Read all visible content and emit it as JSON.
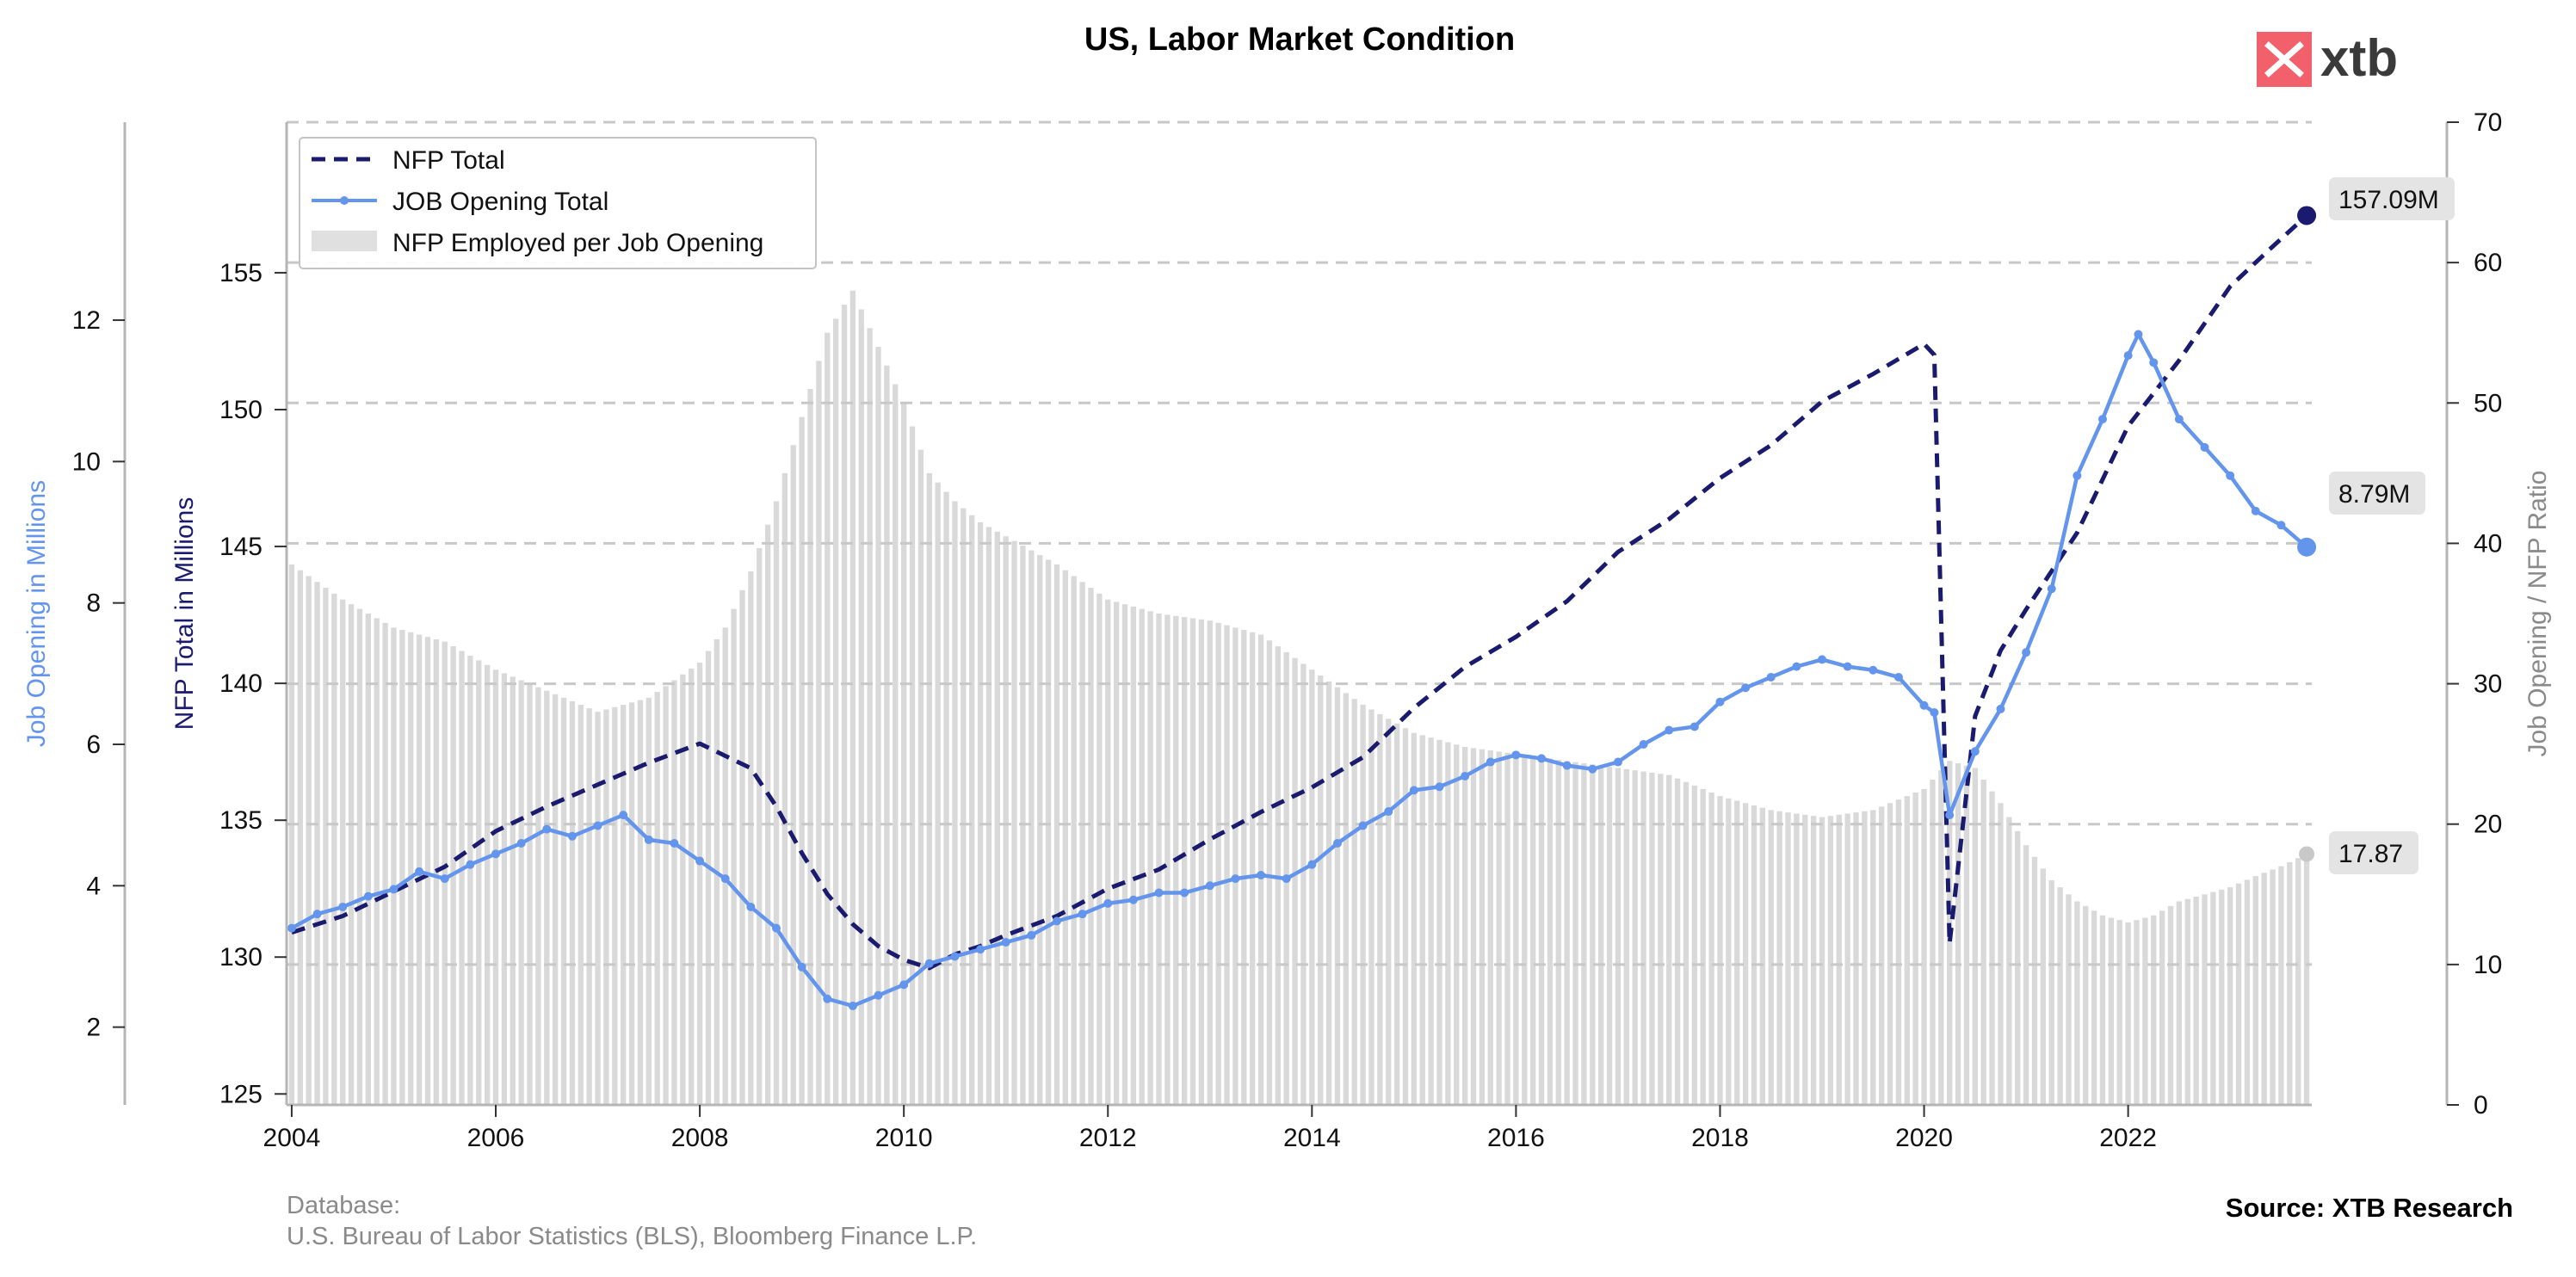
{
  "chart_data": {
    "type": "line",
    "title": "US, Labor Market Condition",
    "left_outer_axis": {
      "label": "Job Opening in Millions",
      "ylim": [
        0.9,
        14.8
      ],
      "ticks": [
        2,
        4,
        6,
        8,
        10,
        12
      ],
      "color": "#6495ED"
    },
    "left_inner_axis": {
      "label": "NFP Total in Millions",
      "ylim": [
        124.6,
        160.5
      ],
      "ticks": [
        125,
        130,
        135,
        140,
        145,
        150,
        155
      ],
      "color": "#1a1a6e"
    },
    "right_axis": {
      "label": "Job Opening / NFP Ratio",
      "ylim": [
        0,
        70
      ],
      "ticks": [
        0,
        10,
        20,
        30,
        40,
        50,
        60,
        70
      ],
      "color": "#8a8a8a"
    },
    "x_axis": {
      "xlim": [
        2003.95,
        2023.8
      ],
      "ticks": [
        2004,
        2006,
        2008,
        2010,
        2012,
        2014,
        2016,
        2018,
        2020,
        2022
      ]
    },
    "grid": {
      "horizontal": true,
      "style": "dashed",
      "color": "#c8c8c8"
    },
    "legend": {
      "position": "top-left",
      "entries": [
        "NFP Total",
        "JOB Opening Total",
        "NFP Employed per Job Opening"
      ]
    },
    "series": [
      {
        "name": "NFP Total",
        "axis": "left_inner",
        "style": "dashed",
        "color": "#1a1a6e",
        "points": [
          [
            2004.0,
            130.9
          ],
          [
            2004.5,
            131.5
          ],
          [
            2005.0,
            132.4
          ],
          [
            2005.5,
            133.3
          ],
          [
            2006.0,
            134.6
          ],
          [
            2006.5,
            135.5
          ],
          [
            2007.0,
            136.3
          ],
          [
            2007.5,
            137.1
          ],
          [
            2008.0,
            137.8
          ],
          [
            2008.5,
            136.9
          ],
          [
            2008.75,
            135.5
          ],
          [
            2009.0,
            133.8
          ],
          [
            2009.25,
            132.3
          ],
          [
            2009.5,
            131.2
          ],
          [
            2009.75,
            130.4
          ],
          [
            2010.0,
            129.9
          ],
          [
            2010.25,
            129.6
          ],
          [
            2010.5,
            130.1
          ],
          [
            2010.75,
            130.4
          ],
          [
            2011.0,
            130.8
          ],
          [
            2011.5,
            131.5
          ],
          [
            2012.0,
            132.5
          ],
          [
            2012.5,
            133.2
          ],
          [
            2013.0,
            134.3
          ],
          [
            2013.5,
            135.3
          ],
          [
            2014.0,
            136.2
          ],
          [
            2014.5,
            137.3
          ],
          [
            2015.0,
            139.1
          ],
          [
            2015.5,
            140.6
          ],
          [
            2016.0,
            141.7
          ],
          [
            2016.5,
            143.0
          ],
          [
            2017.0,
            144.8
          ],
          [
            2017.5,
            146.0
          ],
          [
            2018.0,
            147.5
          ],
          [
            2018.5,
            148.7
          ],
          [
            2019.0,
            150.3
          ],
          [
            2019.5,
            151.3
          ],
          [
            2020.0,
            152.4
          ],
          [
            2020.1,
            152.0
          ],
          [
            2020.25,
            130.5
          ],
          [
            2020.5,
            138.8
          ],
          [
            2020.75,
            141.2
          ],
          [
            2021.0,
            142.7
          ],
          [
            2021.5,
            145.5
          ],
          [
            2022.0,
            149.4
          ],
          [
            2022.5,
            151.8
          ],
          [
            2023.0,
            154.5
          ],
          [
            2023.4,
            155.9
          ],
          [
            2023.75,
            157.09
          ]
        ],
        "end_label": "157.09M"
      },
      {
        "name": "JOB Opening Total",
        "axis": "left_outer",
        "style": "solid-markers",
        "color": "#6495ED",
        "points": [
          [
            2004.0,
            3.4
          ],
          [
            2004.25,
            3.6
          ],
          [
            2004.5,
            3.7
          ],
          [
            2004.75,
            3.85
          ],
          [
            2005.0,
            3.95
          ],
          [
            2005.25,
            4.2
          ],
          [
            2005.5,
            4.1
          ],
          [
            2005.75,
            4.3
          ],
          [
            2006.0,
            4.45
          ],
          [
            2006.25,
            4.6
          ],
          [
            2006.5,
            4.8
          ],
          [
            2006.75,
            4.7
          ],
          [
            2007.0,
            4.85
          ],
          [
            2007.25,
            5.0
          ],
          [
            2007.5,
            4.65
          ],
          [
            2007.75,
            4.6
          ],
          [
            2008.0,
            4.35
          ],
          [
            2008.25,
            4.1
          ],
          [
            2008.5,
            3.7
          ],
          [
            2008.75,
            3.4
          ],
          [
            2009.0,
            2.85
          ],
          [
            2009.25,
            2.4
          ],
          [
            2009.5,
            2.3
          ],
          [
            2009.75,
            2.45
          ],
          [
            2010.0,
            2.6
          ],
          [
            2010.25,
            2.9
          ],
          [
            2010.5,
            3.0
          ],
          [
            2010.75,
            3.1
          ],
          [
            2011.0,
            3.2
          ],
          [
            2011.25,
            3.3
          ],
          [
            2011.5,
            3.5
          ],
          [
            2011.75,
            3.6
          ],
          [
            2012.0,
            3.75
          ],
          [
            2012.25,
            3.8
          ],
          [
            2012.5,
            3.9
          ],
          [
            2012.75,
            3.9
          ],
          [
            2013.0,
            4.0
          ],
          [
            2013.25,
            4.1
          ],
          [
            2013.5,
            4.15
          ],
          [
            2013.75,
            4.1
          ],
          [
            2014.0,
            4.3
          ],
          [
            2014.25,
            4.6
          ],
          [
            2014.5,
            4.85
          ],
          [
            2014.75,
            5.05
          ],
          [
            2015.0,
            5.35
          ],
          [
            2015.25,
            5.4
          ],
          [
            2015.5,
            5.55
          ],
          [
            2015.75,
            5.75
          ],
          [
            2016.0,
            5.85
          ],
          [
            2016.25,
            5.8
          ],
          [
            2016.5,
            5.7
          ],
          [
            2016.75,
            5.65
          ],
          [
            2017.0,
            5.75
          ],
          [
            2017.25,
            6.0
          ],
          [
            2017.5,
            6.2
          ],
          [
            2017.75,
            6.25
          ],
          [
            2018.0,
            6.6
          ],
          [
            2018.25,
            6.8
          ],
          [
            2018.5,
            6.95
          ],
          [
            2018.75,
            7.1
          ],
          [
            2019.0,
            7.2
          ],
          [
            2019.25,
            7.1
          ],
          [
            2019.5,
            7.05
          ],
          [
            2019.75,
            6.95
          ],
          [
            2020.0,
            6.55
          ],
          [
            2020.1,
            6.45
          ],
          [
            2020.25,
            5.0
          ],
          [
            2020.5,
            5.9
          ],
          [
            2020.75,
            6.5
          ],
          [
            2021.0,
            7.3
          ],
          [
            2021.25,
            8.2
          ],
          [
            2021.5,
            9.8
          ],
          [
            2021.75,
            10.6
          ],
          [
            2022.0,
            11.5
          ],
          [
            2022.1,
            11.8
          ],
          [
            2022.25,
            11.4
          ],
          [
            2022.5,
            10.6
          ],
          [
            2022.75,
            10.2
          ],
          [
            2023.0,
            9.8
          ],
          [
            2023.25,
            9.3
          ],
          [
            2023.5,
            9.1
          ],
          [
            2023.75,
            8.79
          ]
        ],
        "end_label": "8.79M"
      },
      {
        "name": "NFP Employed per Job Opening",
        "axis": "right",
        "style": "bars",
        "color": "#d9d9d9",
        "points": [
          [
            2004.0,
            38.5
          ],
          [
            2004.5,
            36.0
          ],
          [
            2005.0,
            34.0
          ],
          [
            2005.5,
            33.0
          ],
          [
            2006.0,
            31.0
          ],
          [
            2006.5,
            29.5
          ],
          [
            2007.0,
            28.0
          ],
          [
            2007.5,
            29.0
          ],
          [
            2008.0,
            31.5
          ],
          [
            2008.25,
            34.0
          ],
          [
            2008.5,
            38.0
          ],
          [
            2008.75,
            43.0
          ],
          [
            2009.0,
            49.0
          ],
          [
            2009.25,
            55.0
          ],
          [
            2009.5,
            58.0
          ],
          [
            2009.75,
            54.0
          ],
          [
            2010.0,
            50.0
          ],
          [
            2010.25,
            45.0
          ],
          [
            2010.5,
            43.0
          ],
          [
            2010.75,
            41.5
          ],
          [
            2011.0,
            40.5
          ],
          [
            2011.5,
            38.5
          ],
          [
            2012.0,
            36.0
          ],
          [
            2012.5,
            35.0
          ],
          [
            2013.0,
            34.5
          ],
          [
            2013.5,
            33.5
          ],
          [
            2014.0,
            31.0
          ],
          [
            2014.5,
            28.5
          ],
          [
            2015.0,
            26.5
          ],
          [
            2015.5,
            25.5
          ],
          [
            2016.0,
            25.0
          ],
          [
            2016.5,
            24.5
          ],
          [
            2017.0,
            24.0
          ],
          [
            2017.5,
            23.5
          ],
          [
            2018.0,
            22.0
          ],
          [
            2018.5,
            21.0
          ],
          [
            2019.0,
            20.5
          ],
          [
            2019.5,
            21.0
          ],
          [
            2020.0,
            22.5
          ],
          [
            2020.25,
            24.5
          ],
          [
            2020.5,
            24.0
          ],
          [
            2020.75,
            21.5
          ],
          [
            2021.0,
            18.5
          ],
          [
            2021.25,
            16.0
          ],
          [
            2021.5,
            14.5
          ],
          [
            2021.75,
            13.5
          ],
          [
            2022.0,
            13.0
          ],
          [
            2022.25,
            13.5
          ],
          [
            2022.5,
            14.5
          ],
          [
            2022.75,
            15.0
          ],
          [
            2023.0,
            15.5
          ],
          [
            2023.25,
            16.3
          ],
          [
            2023.5,
            17.0
          ],
          [
            2023.75,
            17.87
          ]
        ],
        "end_label": "17.87"
      }
    ],
    "footnote": {
      "line1": "Database:",
      "line2": "U.S. Bureau of Labor Statistics (BLS), Bloomberg Finance L.P."
    },
    "source": "Source: XTB Research"
  },
  "brand": {
    "name": "xtb",
    "accent": "#f2606b",
    "text_color": "#3a3a3a"
  }
}
